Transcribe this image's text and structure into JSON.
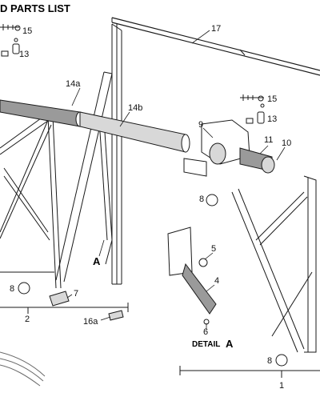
{
  "header": {
    "title_partial": "D PARTS LIST"
  },
  "callouts": {
    "c15a": "15",
    "c13a": "13",
    "c17": "17",
    "c14a": "14a",
    "c14b": "14b",
    "c15b": "15",
    "c13b": "13",
    "c9": "9",
    "c11": "11",
    "c10": "10",
    "c8a": "8",
    "cA": "A",
    "c5": "5",
    "c4": "4",
    "c8b": "8",
    "c7": "7",
    "c2": "2",
    "c16a": "16a",
    "c6": "6",
    "c8c": "8",
    "c1": "1"
  },
  "detail": {
    "word": "DETAIL",
    "letter": "A"
  },
  "colors": {
    "line": "#1a1a1a",
    "shade": "#9a9a9a",
    "light": "#d8d8d8"
  }
}
